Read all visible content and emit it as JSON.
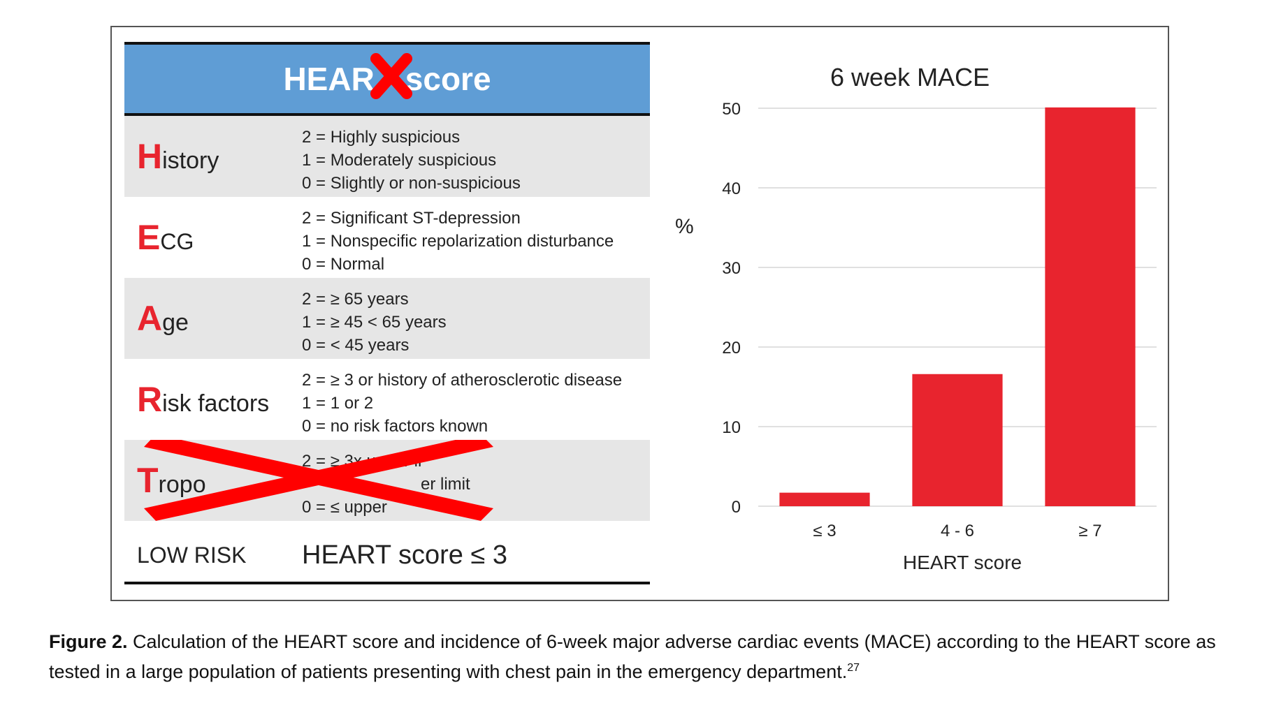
{
  "table": {
    "title": "HEAR",
    "title_suffix": "score",
    "rows": [
      {
        "initial": "H",
        "rest": "istory",
        "lines": [
          "2 = Highly suspicious",
          "1 = Moderately suspicious",
          "0 = Slightly or non-suspicious"
        ]
      },
      {
        "initial": "E",
        "rest": "CG",
        "lines": [
          "2 = Significant ST-depression",
          "1 = Nonspecific repolarization disturbance",
          "0 = Normal"
        ]
      },
      {
        "initial": "A",
        "rest": "ge",
        "lines": [
          "2 = ≥ 65 years",
          "1 = ≥ 45 < 65 years",
          "0 = < 45 years"
        ]
      },
      {
        "initial": "R",
        "rest": "isk factors",
        "lines": [
          "2 = ≥ 3 or history of atherosclerotic disease",
          "1 = 1 or 2",
          "0 = no risk factors known"
        ]
      },
      {
        "initial": "T",
        "rest": "ropo",
        "lines": [
          "2 = ≥ 3x upper li",
          "er limit",
          "0 = ≤ upper"
        ]
      }
    ],
    "low_risk_label": "LOW RISK",
    "low_risk_value": "HEART score ≤ 3",
    "strike_color": "#ff0000"
  },
  "chart_data": {
    "type": "bar",
    "title": "6 week MACE",
    "ylabel": "%",
    "xlabel": "HEART score",
    "categories": [
      "≤ 3",
      "4 - 6",
      "≥ 7"
    ],
    "values": [
      1.7,
      16.6,
      50.1
    ],
    "ylim": [
      0,
      50
    ],
    "yticks": [
      0,
      10,
      20,
      30,
      40,
      50
    ],
    "grid": true,
    "bar_color": "#e8242e"
  },
  "caption": {
    "label": "Figure 2.",
    "text": "Calculation of the HEART score and incidence of 6-week major adverse cardiac events (MACE) according to the HEART score as tested in a large population of patients presenting with chest pain in the emergency department.",
    "ref": "27"
  }
}
